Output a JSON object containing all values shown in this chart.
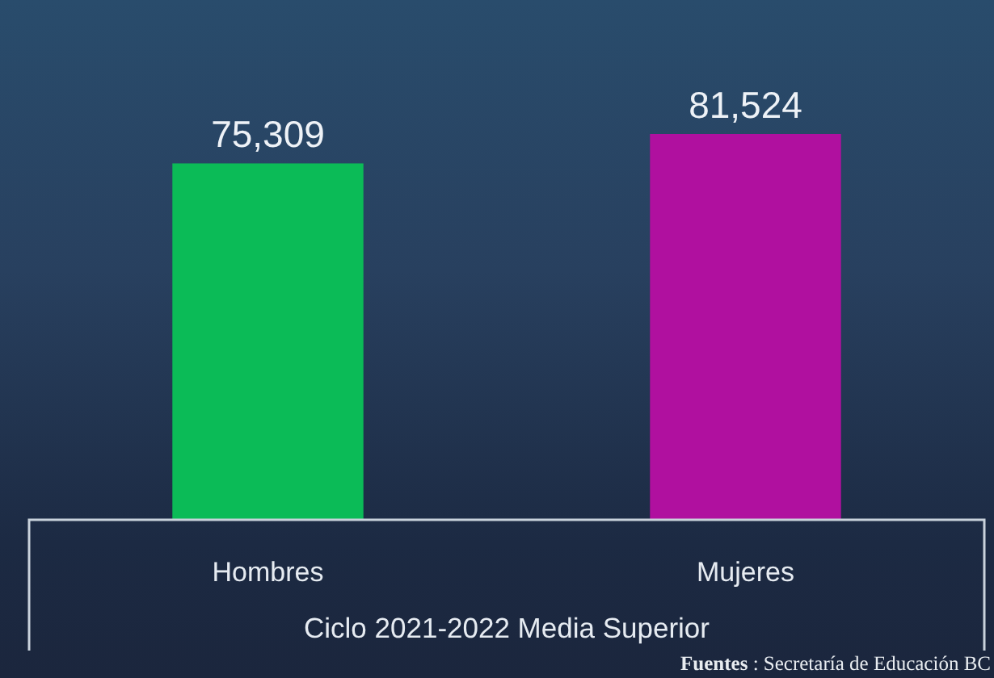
{
  "chart_data": {
    "type": "bar",
    "categories": [
      "Hombres",
      "Mujeres"
    ],
    "values": [
      75309,
      81524
    ],
    "value_labels": [
      "75,309",
      "81,524"
    ],
    "colors": [
      "#0bbb57",
      "#b0109f"
    ],
    "tick_labels": "x",
    "xlabel": "Ciclo 2021-2022 Media Superior",
    "annotations": [
      "Fuentes : Secretaría de Educación BC"
    ]
  }
}
